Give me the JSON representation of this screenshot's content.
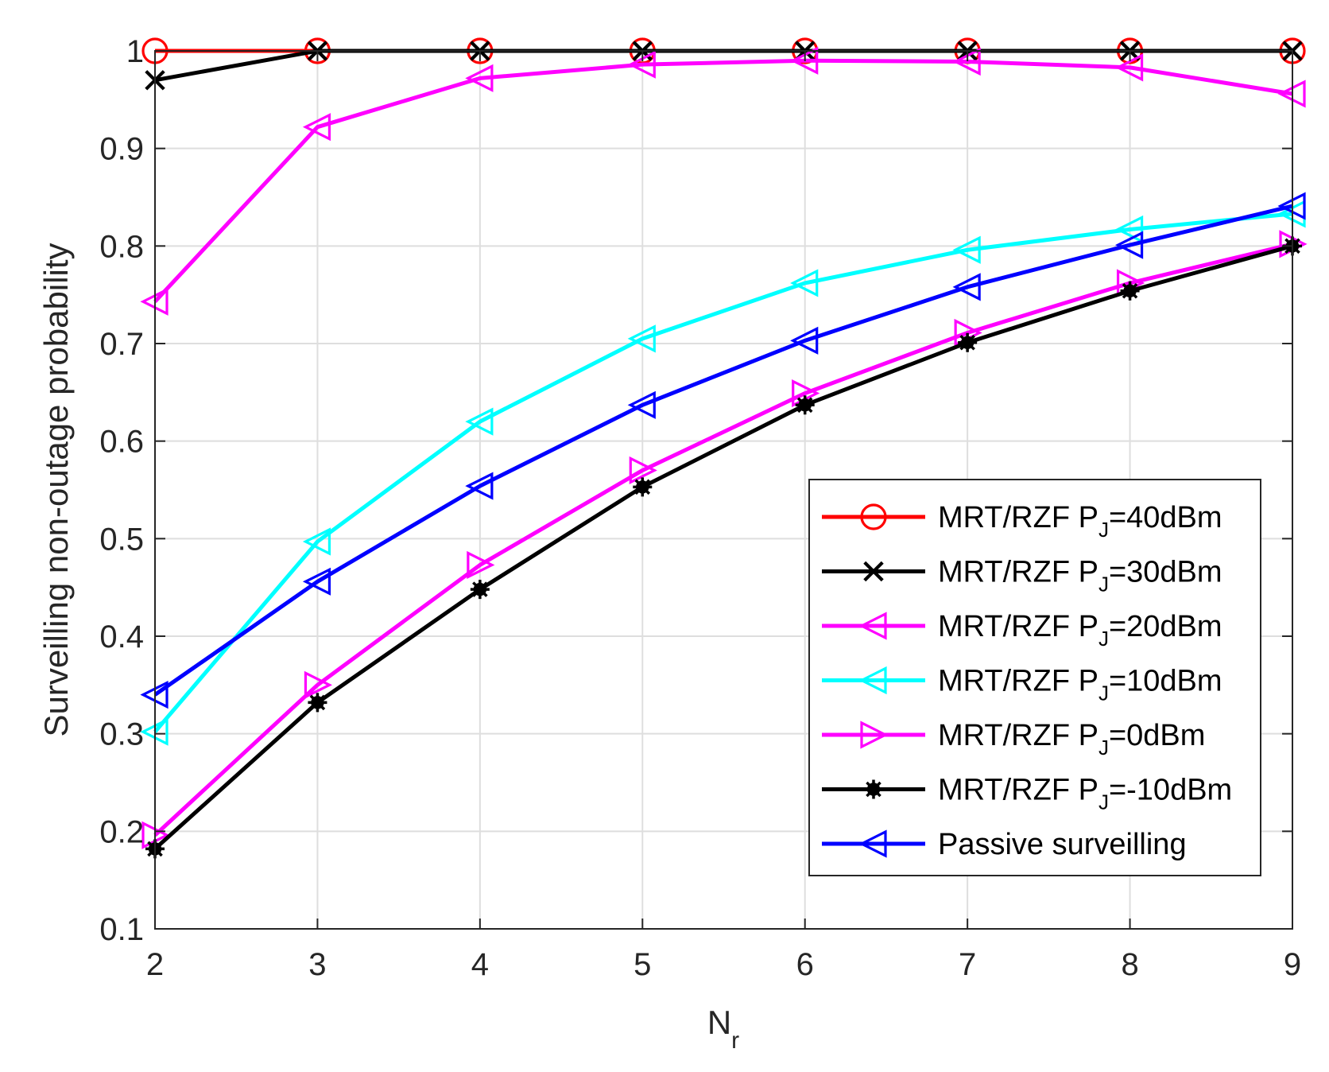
{
  "chart_data": {
    "type": "line",
    "title": "",
    "xlabel": "N",
    "xlabel_sub": "r",
    "ylabel": "Surveilling non-outage probability",
    "x": [
      2,
      3,
      4,
      5,
      6,
      7,
      8,
      9
    ],
    "xlim": [
      2,
      9
    ],
    "ylim": [
      0.1,
      1.0
    ],
    "xticks": [
      "2",
      "3",
      "4",
      "5",
      "6",
      "7",
      "8",
      "9"
    ],
    "yticks": [
      "0.1",
      "0.2",
      "0.3",
      "0.4",
      "0.5",
      "0.6",
      "0.7",
      "0.8",
      "0.9",
      "1"
    ],
    "grid": true,
    "legend_position": "lower-right",
    "series": [
      {
        "name": "MRT/RZF P_J=40dBm",
        "prefix": "MRT/RZF P",
        "sub": "J",
        "suffix": "=40dBm",
        "color": "#ff0000",
        "marker": "circle",
        "values": [
          1.0,
          1.0,
          1.0,
          1.0,
          1.0,
          1.0,
          1.0,
          1.0
        ]
      },
      {
        "name": "MRT/RZF P_J=30dBm",
        "prefix": "MRT/RZF P",
        "sub": "J",
        "suffix": "=30dBm",
        "color": "#000000",
        "marker": "x",
        "values": [
          0.97,
          1.0,
          1.0,
          1.0,
          1.0,
          1.0,
          1.0,
          1.0
        ]
      },
      {
        "name": "MRT/RZF P_J=20dBm",
        "prefix": "MRT/RZF P",
        "sub": "J",
        "suffix": "=20dBm",
        "color": "#ff00ff",
        "marker": "triangle-left",
        "values": [
          0.743,
          0.922,
          0.972,
          0.986,
          0.99,
          0.989,
          0.983,
          0.956
        ]
      },
      {
        "name": "MRT/RZF P_J=10dBm",
        "prefix": "MRT/RZF P",
        "sub": "J",
        "suffix": "=10dBm",
        "color": "#00ffff",
        "marker": "triangle-left",
        "values": [
          0.302,
          0.497,
          0.62,
          0.705,
          0.762,
          0.796,
          0.817,
          0.833
        ]
      },
      {
        "name": "MRT/RZF P_J=0dBm",
        "prefix": "MRT/RZF P",
        "sub": "J",
        "suffix": "=0dBm",
        "color": "#ff00ff",
        "marker": "triangle-right",
        "values": [
          0.196,
          0.35,
          0.473,
          0.57,
          0.649,
          0.711,
          0.762,
          0.802
        ]
      },
      {
        "name": "MRT/RZF P_J=-10dBm",
        "prefix": "MRT/RZF P",
        "sub": "J",
        "suffix": "=-10dBm",
        "color": "#000000",
        "marker": "asterisk",
        "values": [
          0.182,
          0.332,
          0.448,
          0.553,
          0.637,
          0.701,
          0.754,
          0.8
        ]
      },
      {
        "name": "Passive surveilling",
        "prefix": "Passive surveilling",
        "sub": "",
        "suffix": "",
        "color": "#0000ff",
        "marker": "triangle-left",
        "values": [
          0.34,
          0.456,
          0.554,
          0.637,
          0.703,
          0.758,
          0.801,
          0.841
        ]
      }
    ]
  }
}
